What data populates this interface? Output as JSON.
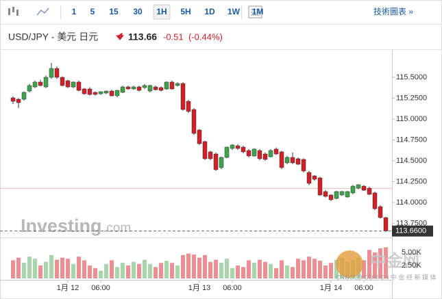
{
  "toolbar": {
    "intervals": [
      "1",
      "5",
      "15",
      "30",
      "1H",
      "5H",
      "1D",
      "1W",
      "1M"
    ],
    "selected": "1H",
    "chart_button": "技術圖表 »"
  },
  "chart_data": {
    "type": "candlestick",
    "title": "USD/JPY - 美元 日元",
    "last": "113.66",
    "change": "-0.51",
    "change_pct": "(-0.44%)",
    "categories": [
      null,
      null,
      null,
      null,
      null,
      null,
      null,
      null,
      null,
      null,
      "1月 12",
      null,
      null,
      null,
      null,
      null,
      "06:00",
      null,
      null,
      null,
      null,
      null,
      null,
      null,
      null,
      null,
      null,
      null,
      null,
      null,
      null,
      null,
      null,
      null,
      "1月 13",
      null,
      null,
      null,
      null,
      null,
      "06:00",
      null,
      null,
      null,
      null,
      null,
      null,
      null,
      null,
      null,
      null,
      null,
      null,
      null,
      null,
      null,
      null,
      null,
      "1月 14",
      null,
      null,
      null,
      null,
      null,
      "06:00",
      null,
      null,
      null,
      null
    ],
    "series": [
      {
        "open": [
          115.253,
          115.237,
          115.237,
          115.335,
          115.384,
          115.442,
          115.384,
          115.499,
          115.605,
          115.499,
          115.458,
          115.384,
          115.442,
          115.36,
          115.36,
          115.319,
          115.302,
          115.311,
          115.335,
          115.278,
          115.319,
          115.384,
          115.36,
          115.384,
          115.376,
          115.335,
          115.384,
          115.376,
          115.36,
          115.442,
          115.401,
          115.425,
          115.212,
          115.114,
          114.869,
          114.73,
          114.607,
          114.582,
          114.419,
          114.541,
          114.648,
          114.68,
          114.664,
          114.623,
          114.558,
          114.623,
          114.582,
          114.549,
          114.64,
          114.607,
          114.476,
          114.541,
          114.525,
          114.517,
          114.361,
          114.32,
          114.296,
          114.132,
          114.091,
          114.05,
          114.091,
          114.067,
          114.116,
          114.173,
          114.197,
          114.173,
          114.116,
          113.952,
          113.821
        ],
        "high": [
          115.27,
          115.25,
          115.33,
          115.42,
          115.46,
          115.47,
          115.52,
          115.671,
          115.63,
          115.51,
          115.47,
          115.45,
          115.46,
          115.37,
          115.38,
          115.33,
          115.33,
          115.34,
          115.35,
          115.35,
          115.4,
          115.4,
          115.4,
          115.4,
          115.42,
          115.41,
          115.4,
          115.39,
          115.45,
          115.46,
          115.44,
          115.44,
          115.23,
          115.13,
          114.88,
          114.74,
          114.62,
          114.6,
          114.55,
          114.67,
          114.7,
          114.7,
          114.68,
          114.64,
          114.65,
          114.64,
          114.6,
          114.64,
          114.66,
          114.62,
          114.56,
          114.6,
          114.54,
          114.53,
          114.38,
          114.33,
          114.31,
          114.15,
          114.1,
          114.14,
          114.14,
          114.14,
          114.21,
          114.22,
          114.21,
          114.19,
          114.13,
          113.97,
          113.83
        ],
        "low": [
          115.18,
          115.131,
          115.22,
          115.32,
          115.37,
          115.39,
          115.37,
          115.48,
          115.48,
          115.39,
          115.37,
          115.37,
          115.33,
          115.29,
          115.28,
          115.28,
          115.29,
          115.3,
          115.27,
          115.26,
          115.31,
          115.35,
          115.35,
          115.33,
          115.36,
          115.32,
          115.34,
          115.33,
          115.35,
          115.35,
          115.39,
          115.1,
          115.07,
          114.81,
          114.69,
          114.51,
          114.51,
          114.38,
          114.4,
          114.53,
          114.63,
          114.63,
          114.59,
          114.54,
          114.55,
          114.51,
          114.5,
          114.54,
          114.57,
          114.4,
          114.46,
          114.46,
          114.45,
          114.36,
          114.21,
          114.26,
          114.08,
          114.06,
          114.02,
          114.04,
          114.08,
          114.06,
          114.1,
          114.16,
          114.14,
          114.09,
          113.91,
          113.81,
          113.65
        ],
        "close": [
          115.212,
          115.196,
          115.319,
          115.401,
          115.442,
          115.401,
          115.499,
          115.605,
          115.499,
          115.401,
          115.384,
          115.442,
          115.343,
          115.302,
          115.294,
          115.294,
          115.327,
          115.335,
          115.278,
          115.343,
          115.384,
          115.36,
          115.384,
          115.343,
          115.401,
          115.401,
          115.351,
          115.343,
          115.442,
          115.36,
          115.425,
          115.114,
          115.09,
          114.828,
          114.705,
          114.525,
          114.525,
          114.394,
          114.541,
          114.664,
          114.689,
          114.648,
          114.607,
          114.558,
          114.64,
          114.525,
          114.517,
          114.623,
          114.582,
          114.419,
          114.541,
          114.476,
          114.459,
          114.378,
          114.23,
          114.279,
          114.091,
          114.075,
          114.034,
          114.132,
          114.132,
          114.132,
          114.197,
          114.214,
          114.148,
          114.099,
          113.927,
          113.821,
          113.66
        ]
      }
    ],
    "up_color": "#3fa34d",
    "down_color": "#d0202a",
    "ylim": [
      113.6,
      115.81
    ],
    "yticks": [
      {
        "value": 115.5,
        "label": "115.5000"
      },
      {
        "value": 115.25,
        "label": "115.2500"
      },
      {
        "value": 115,
        "label": "115.0000"
      },
      {
        "value": 114.75,
        "label": "114.7500"
      },
      {
        "value": 114.5,
        "label": "114.5000"
      },
      {
        "value": 114.25,
        "label": "114.2500"
      },
      {
        "value": 114,
        "label": "114.0000"
      },
      {
        "value": 113.75,
        "label": "113.7500"
      }
    ],
    "last_price": {
      "value": 113.66,
      "label": "113.6600"
    },
    "prev_close": 114.17,
    "volume": {
      "values": [
        3.5,
        4.0,
        3.0,
        4.2,
        3.8,
        2.5,
        3.2,
        4.5,
        3.6,
        4.0,
        3.8,
        2.8,
        4.2,
        3.5,
        2.5,
        2.0,
        1.5,
        2.8,
        3.5,
        2.2,
        3.0,
        2.5,
        3.2,
        2.8,
        3.6,
        2.8,
        2.2,
        3.0,
        3.4,
        3.0,
        2.5,
        4.5,
        4.8,
        4.6,
        4.0,
        4.5,
        3.2,
        3.6,
        3.0,
        3.8,
        2.0,
        2.5,
        2.2,
        3.5,
        3.0,
        3.6,
        3.2,
        2.8,
        2.0,
        3.5,
        2.5,
        2.2,
        3.8,
        3.5,
        4.2,
        3.8,
        3.4,
        2.5,
        3.0,
        3.6,
        4.0,
        3.2,
        3.5,
        4.0,
        3.5,
        5.5,
        5.0,
        5.8,
        6.0
      ],
      "ylim": [
        0,
        7.5
      ],
      "yticks": [
        {
          "value": 5,
          "label": "5.00K"
        },
        {
          "value": 2.5,
          "label": "2.50K"
        }
      ],
      "up_color": "#a8d5ab",
      "down_color": "#ec8f94"
    }
  },
  "watermarks": {
    "investing": "Investing",
    "investing_suffix": ".com",
    "cngold": "中金网",
    "cngold_sub": "CNGOLD.COM.CN 中 金 经 新 媒 体"
  }
}
